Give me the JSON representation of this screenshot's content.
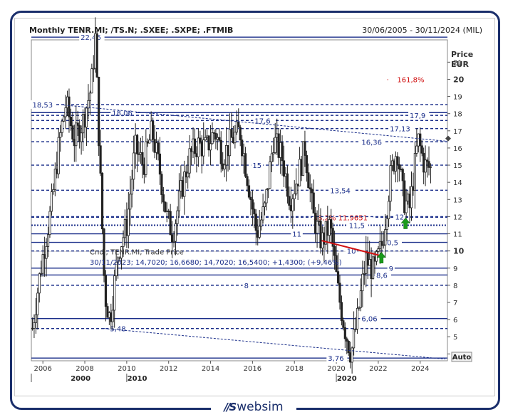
{
  "header": {
    "title": "Monthly TENR.MI; /TS.N; .SXEE; .SXPE; .FTMIB",
    "period": "30/06/2005 - 30/11/2024 (MIL)"
  },
  "logo": {
    "mark": "//S",
    "name": "websim"
  },
  "chart_data": {
    "type": "candlestick",
    "ylabel": "Price\nEUR",
    "ylim": [
      3.6,
      22.3
    ],
    "y_ticks": [
      4,
      5,
      6,
      7,
      8,
      9,
      10,
      11,
      12,
      13,
      14,
      15,
      16,
      17,
      18,
      19,
      20,
      21
    ],
    "y_ticks_bold": [
      10,
      20
    ],
    "xlim": [
      2005.45,
      2025.3
    ],
    "x_ticks": [
      "2006",
      "2008",
      "2010",
      "2012",
      "2014",
      "2016",
      "2018",
      "2020",
      "2022",
      "2024"
    ],
    "x_decades": [
      "2000",
      "2010",
      "2020"
    ],
    "auto_label": "Auto",
    "legend": {
      "line1": "Cndl; TENR.MI; Trade Price",
      "line2": "30/11/2023; 14,7020; 16,6680; 14,7020; 16,5400; +1,4300; (+9,46%)"
    },
    "fib_label": "161,8%",
    "fib_value": 20,
    "levels": [
      {
        "value": 22.46,
        "label": "22,46",
        "style": "solid"
      },
      {
        "value": 18.53,
        "label": "18,53",
        "style": "dashed"
      },
      {
        "value": 18.06,
        "label": "18,06",
        "style": "solid"
      },
      {
        "value": 17.9,
        "label": "17,9",
        "style": "dashed"
      },
      {
        "value": 17.6,
        "label": "17,6",
        "style": "dashed"
      },
      {
        "value": 17.13,
        "label": "17,13",
        "style": "dashed"
      },
      {
        "value": 16.36,
        "label": "16,36",
        "style": "dashed"
      },
      {
        "value": 15,
        "label": "15",
        "style": "dashed"
      },
      {
        "value": 13.54,
        "label": "13,54",
        "style": "dashed"
      },
      {
        "value": 11.9651,
        "label": "38,2% 11,9651",
        "style": "dashed"
      },
      {
        "value": 11.5,
        "label": "11,5",
        "style": "dotted"
      },
      {
        "value": 12,
        "label": "12",
        "style": "dashed"
      },
      {
        "value": 11,
        "label": "11",
        "style": "solid"
      },
      {
        "value": 10.5,
        "label": "10,5",
        "style": "solid"
      },
      {
        "value": 10,
        "label": "10",
        "style": "dashed"
      },
      {
        "value": 9,
        "label": "9",
        "style": "solid"
      },
      {
        "value": 8.6,
        "label": "8,6",
        "style": "solid"
      },
      {
        "value": 8,
        "label": "8",
        "style": "dashed"
      },
      {
        "value": 6.06,
        "label": "6,06",
        "style": "solid"
      },
      {
        "value": 5.48,
        "label": "5,48",
        "style": "dashed"
      },
      {
        "value": 3.76,
        "label": "3,76",
        "style": "solid"
      }
    ],
    "trendlines": [
      {
        "from": [
          2007.0,
          18.5
        ],
        "to": [
          2025.2,
          16.4
        ],
        "color": "#1a2e8a"
      },
      {
        "from": [
          2008.9,
          5.48
        ],
        "to": [
          2025.2,
          3.7
        ],
        "color": "#1a2e8a"
      },
      {
        "from": [
          2019.3,
          10.6
        ],
        "to": [
          2022.2,
          9.7
        ],
        "color": "#d01010"
      }
    ],
    "arrows": [
      {
        "x": 2022.15,
        "y": 9.5,
        "color": "#1a9a1a"
      },
      {
        "x": 2023.3,
        "y": 11.5,
        "color": "#1a9a1a"
      }
    ],
    "anchors": [
      [
        2005.5,
        5.5
      ],
      [
        2005.9,
        9.0
      ],
      [
        2006.4,
        12.5
      ],
      [
        2006.8,
        16.5
      ],
      [
        2007.1,
        18.6
      ],
      [
        2007.5,
        16.5
      ],
      [
        2007.9,
        17.5
      ],
      [
        2008.3,
        19.5
      ],
      [
        2008.5,
        22.4
      ],
      [
        2008.75,
        14.0
      ],
      [
        2008.95,
        7.5
      ],
      [
        2009.2,
        6.0
      ],
      [
        2009.6,
        10.0
      ],
      [
        2010.0,
        11.5
      ],
      [
        2010.4,
        16.0
      ],
      [
        2010.8,
        15.0
      ],
      [
        2011.2,
        17.0
      ],
      [
        2011.6,
        14.5
      ],
      [
        2011.9,
        12.0
      ],
      [
        2012.2,
        11.0
      ],
      [
        2012.6,
        13.5
      ],
      [
        2013.0,
        15.5
      ],
      [
        2013.4,
        16.2
      ],
      [
        2013.8,
        16.0
      ],
      [
        2014.2,
        17.0
      ],
      [
        2014.6,
        15.5
      ],
      [
        2015.0,
        16.5
      ],
      [
        2015.4,
        17.0
      ],
      [
        2015.8,
        14.0
      ],
      [
        2016.2,
        11.0
      ],
      [
        2016.6,
        12.5
      ],
      [
        2017.0,
        16.5
      ],
      [
        2017.4,
        15.5
      ],
      [
        2017.8,
        13.0
      ],
      [
        2018.2,
        14.5
      ],
      [
        2018.5,
        16.0
      ],
      [
        2018.9,
        12.0
      ],
      [
        2019.3,
        10.5
      ],
      [
        2019.7,
        11.5
      ],
      [
        2020.1,
        7.5
      ],
      [
        2020.4,
        5.5
      ],
      [
        2020.7,
        4.0
      ],
      [
        2021.0,
        6.0
      ],
      [
        2021.4,
        9.5
      ],
      [
        2021.8,
        8.8
      ],
      [
        2022.2,
        10.5
      ],
      [
        2022.6,
        14.5
      ],
      [
        2022.9,
        16.0
      ],
      [
        2023.2,
        13.0
      ],
      [
        2023.5,
        12.5
      ],
      [
        2023.9,
        16.5
      ],
      [
        2024.2,
        15.0
      ],
      [
        2024.5,
        14.8
      ]
    ]
  }
}
